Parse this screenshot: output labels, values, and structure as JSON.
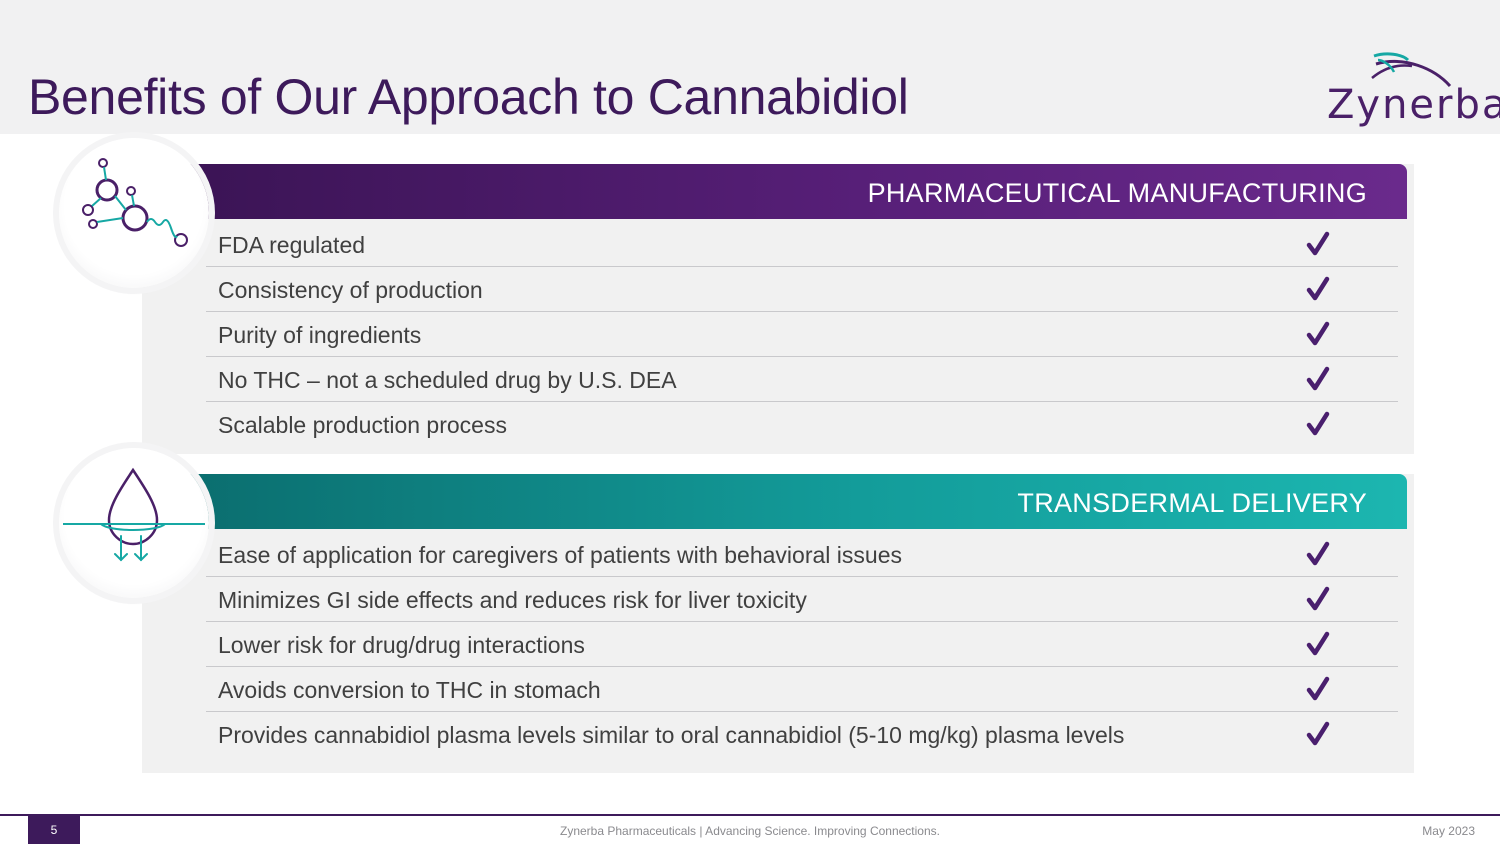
{
  "header": {
    "title": "Benefits of Our Approach to Cannabidiol",
    "logo_text": "Zynerba"
  },
  "sections": [
    {
      "heading": "PHARMACEUTICAL MANUFACTURING",
      "icon": "molecule-icon",
      "color": "#571f78",
      "rows": [
        "FDA regulated",
        "Consistency of production",
        "Purity of ingredients",
        "No THC – not a scheduled drug by U.S. DEA",
        "Scalable production process"
      ]
    },
    {
      "heading": "TRANSDERMAL DELIVERY",
      "icon": "skin-droplet-icon",
      "color": "#139c9a",
      "rows": [
        "Ease of application for caregivers of patients with behavioral issues",
        "Minimizes GI side effects and reduces risk for liver toxicity",
        "Lower risk for drug/drug interactions",
        "Avoids conversion to THC in stomach",
        "Provides cannabidiol plasma levels similar to oral cannabidiol (5-10 mg/kg) plasma levels"
      ]
    }
  ],
  "check_color": "#4a1f6e",
  "footer": {
    "page_number": "5",
    "center_text": "Zynerba Pharmaceuticals  |  Advancing Science. Improving Connections.",
    "date": "May 2023"
  }
}
